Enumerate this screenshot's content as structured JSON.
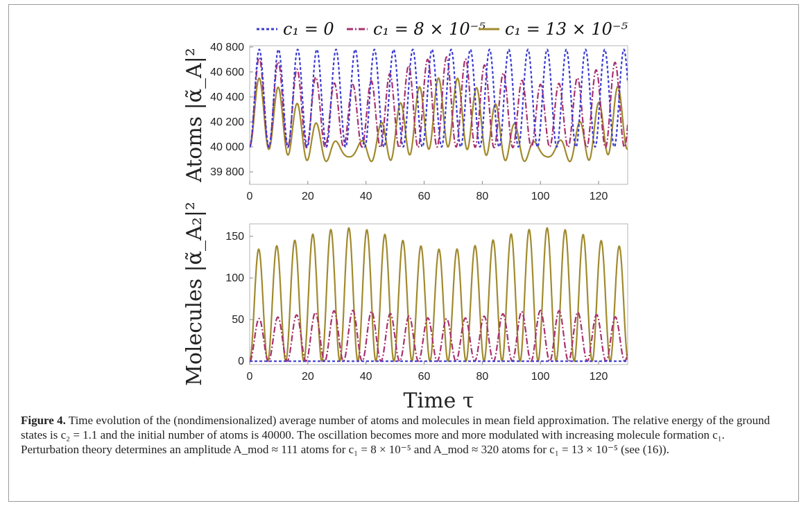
{
  "legend": [
    {
      "label": "c₁ = 0",
      "color": "#3b3bd0",
      "dash": "4,3"
    },
    {
      "label": "c₁ = 8 × 10⁻⁵",
      "color": "#a8306e",
      "dash": "9,3,2,3"
    },
    {
      "label": "c₁ = 13 × 10⁻⁵",
      "color": "#a08a2e",
      "dash": ""
    }
  ],
  "chart_data": [
    {
      "type": "line",
      "ylabel": "Atoms |α̃_A|²",
      "xlabel": "",
      "xlim": [
        0,
        130
      ],
      "ylim": [
        39700,
        40810
      ],
      "x_ticks": [
        0,
        20,
        40,
        60,
        80,
        100,
        120
      ],
      "x_tick_labels": [
        "0",
        "20",
        "40",
        "60",
        "80",
        "100",
        "120"
      ],
      "y_ticks": [
        39800,
        40000,
        40200,
        40400,
        40600,
        40800
      ],
      "y_tick_labels": [
        "39 800",
        "40 000",
        "40 200",
        "40 400",
        "40 600",
        "40 800"
      ],
      "series": [
        {
          "name": "c₁ = 0",
          "baseline": 40000,
          "amplitude": 780,
          "period": 6.6,
          "modulation": 0
        },
        {
          "name": "c₁ = 8 × 10⁻⁵",
          "baseline": 40000,
          "amplitude": 720,
          "period": 6.45,
          "modulation": 111
        },
        {
          "name": "c₁ = 13 × 10⁻⁵",
          "baseline": 40000,
          "amplitude": 560,
          "period": 6.2,
          "modulation": 320
        }
      ]
    },
    {
      "type": "line",
      "ylabel": "Molecules |α̃_A₂|²",
      "xlabel": "Time τ",
      "xlim": [
        0,
        130
      ],
      "ylim": [
        -4,
        165
      ],
      "x_ticks": [
        0,
        20,
        40,
        60,
        80,
        100,
        120
      ],
      "x_tick_labels": [
        "0",
        "20",
        "40",
        "60",
        "80",
        "100",
        "120"
      ],
      "y_ticks": [
        0,
        50,
        100,
        150
      ],
      "y_tick_labels": [
        "0",
        "50",
        "100",
        "150"
      ],
      "series": [
        {
          "name": "c₁ = 0",
          "peak": 0,
          "peak_modulation": 0,
          "period": 6.6
        },
        {
          "name": "c₁ = 8 × 10⁻⁵",
          "peak": 56,
          "peak_modulation": 5,
          "period": 6.45
        },
        {
          "name": "c₁ = 13 × 10⁻⁵",
          "peak": 147,
          "peak_modulation": 13,
          "period": 6.2
        }
      ]
    }
  ],
  "caption": {
    "figure_label": "Figure 4.",
    "text": " Time evolution of the (nondimensionalized) average number of atoms and molecules in mean field approximation. The relative energy of the ground states is c₂ = 1.1 and the initial number of atoms is 40000. The oscillation becomes more and more modulated with increasing molecule formation c₁. Perturbation theory determines an amplitude A_mod ≈ 111 atoms for c₁ = 8 × 10⁻⁵ and A_mod ≈ 320 atoms for c₁ = 13 × 10⁻⁵ (see (16))."
  }
}
